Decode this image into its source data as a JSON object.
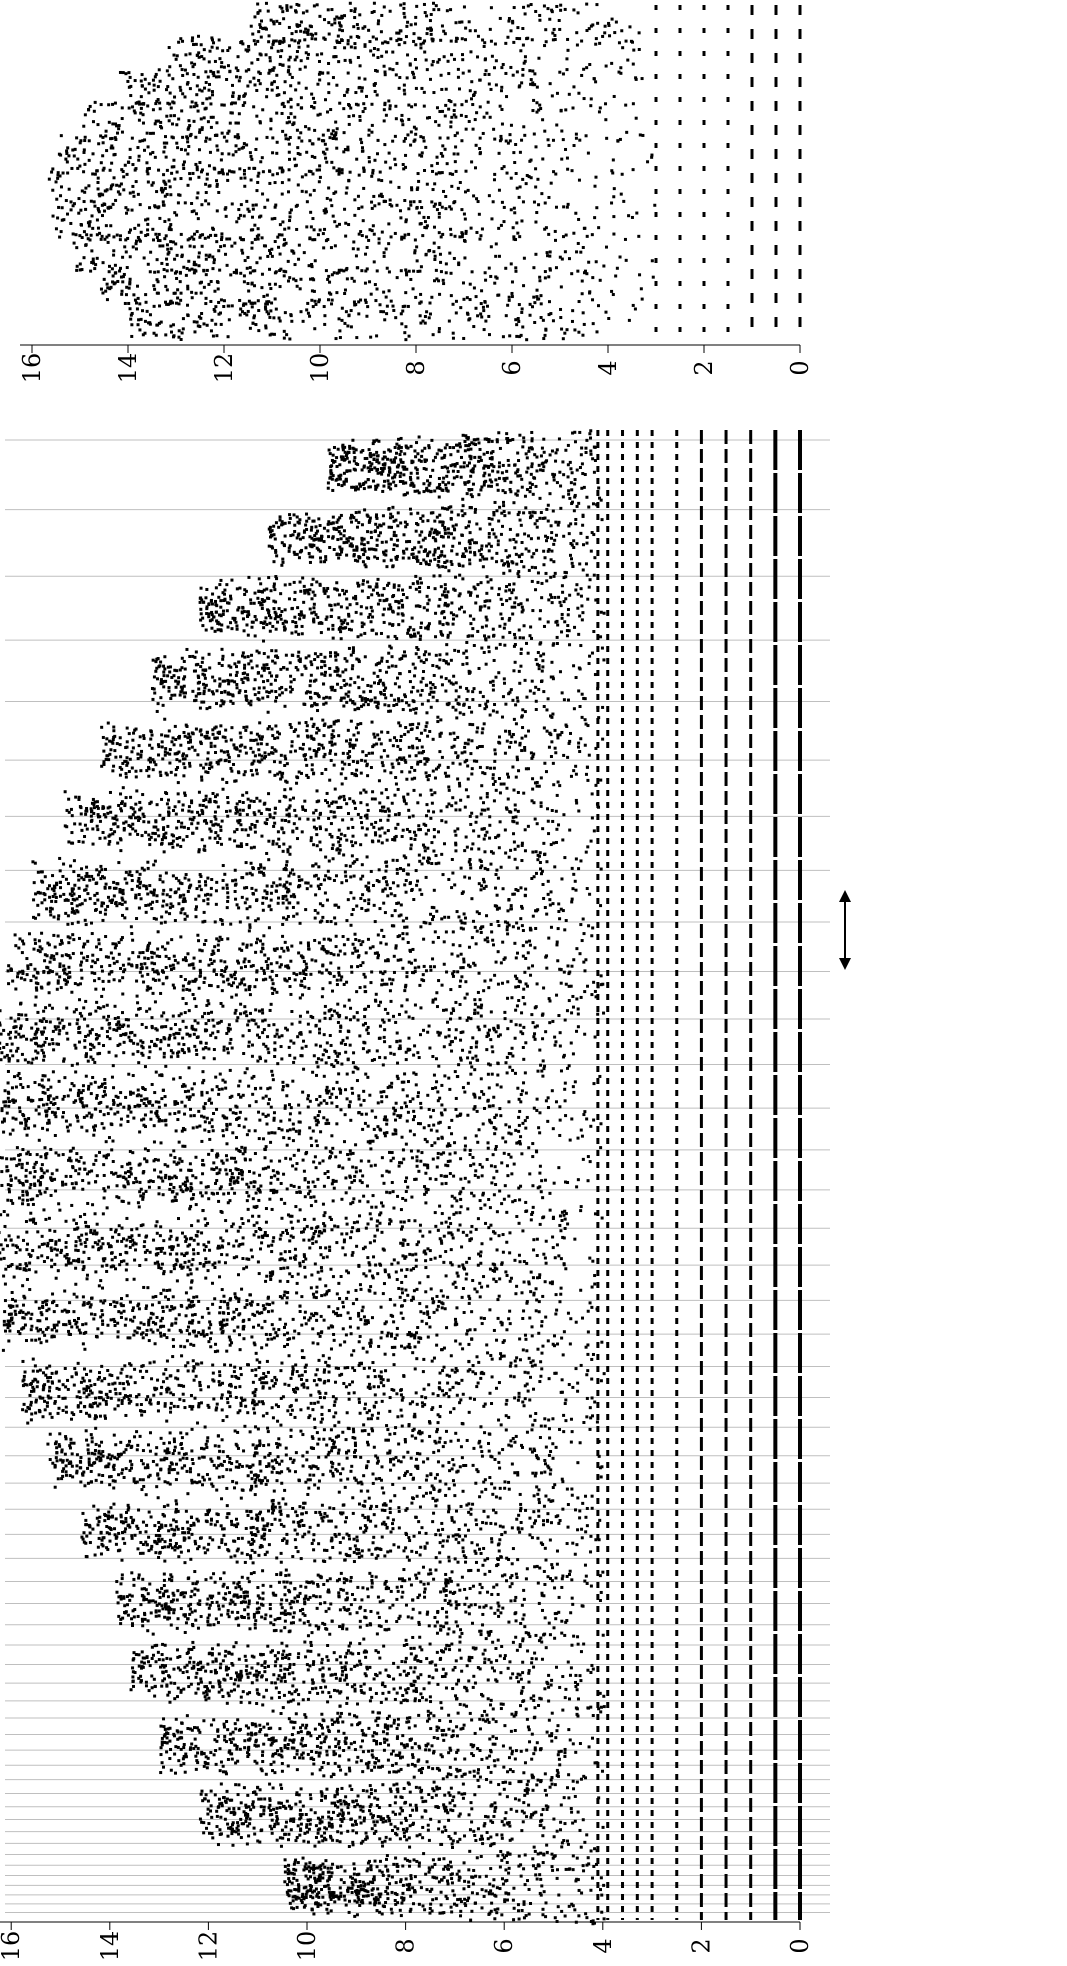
{
  "chart_data": [
    {
      "id": "main-panel",
      "type": "scatter",
      "title": "",
      "xlabel": "",
      "ylabel": "",
      "value_axis": {
        "ticks": [
          0,
          2,
          4,
          6,
          8,
          10,
          12,
          14,
          16
        ],
        "tick_labels": [
          "0",
          "2",
          "4",
          "6",
          "8",
          "10",
          "12",
          "14",
          "16"
        ],
        "range": [
          -0.5,
          17.0
        ],
        "grid": false
      },
      "bands": [
        {
          "position": 1.9,
          "peak": 10.5
        },
        {
          "position": 3.0,
          "peak": 12.2
        },
        {
          "position": 4.2,
          "peak": 13.0
        },
        {
          "position": 5.4,
          "peak": 13.6
        },
        {
          "position": 6.6,
          "peak": 13.9
        },
        {
          "position": 7.8,
          "peak": 14.6
        },
        {
          "position": 9.0,
          "peak": 15.3
        },
        {
          "position": 10.2,
          "peak": 15.8
        },
        {
          "position": 11.3,
          "peak": 16.2
        },
        {
          "position": 12.4,
          "peak": 16.4
        },
        {
          "position": 13.5,
          "peak": 16.6
        },
        {
          "position": 14.6,
          "peak": 16.6
        },
        {
          "position": 15.6,
          "peak": 16.4
        },
        {
          "position": 16.6,
          "peak": 16.1
        },
        {
          "position": 17.6,
          "peak": 15.6
        },
        {
          "position": 18.6,
          "peak": 15.0
        },
        {
          "position": 19.6,
          "peak": 14.2
        },
        {
          "position": 20.6,
          "peak": 13.2
        },
        {
          "position": 21.6,
          "peak": 12.2
        },
        {
          "position": 22.6,
          "peak": 10.8
        },
        {
          "position": 23.6,
          "peak": 9.6
        }
      ],
      "rows": [
        0,
        0.5,
        1.0,
        1.5,
        2.0,
        2.5,
        3.0,
        3.3,
        3.6,
        3.9,
        4.1
      ],
      "annotations": [
        "double-headed arrow"
      ]
    },
    {
      "id": "inset-panel",
      "type": "scatter",
      "title": "",
      "xlabel": "",
      "ylabel": "",
      "value_axis": {
        "ticks": [
          0,
          2,
          4,
          6,
          8,
          10,
          12,
          14,
          16
        ],
        "tick_labels": [
          "0",
          "2",
          "4",
          "6",
          "8",
          "10",
          "12",
          "14",
          "16"
        ],
        "range": [
          -0.5,
          17.0
        ],
        "grid": false
      },
      "bands": [
        {
          "position": 1.0,
          "peak": 14.0
        },
        {
          "position": 2.0,
          "peak": 14.6
        },
        {
          "position": 3.0,
          "peak": 15.2
        },
        {
          "position": 4.0,
          "peak": 15.6
        },
        {
          "position": 5.0,
          "peak": 15.7
        },
        {
          "position": 6.0,
          "peak": 15.5
        },
        {
          "position": 7.0,
          "peak": 15.0
        },
        {
          "position": 8.0,
          "peak": 14.2
        },
        {
          "position": 9.0,
          "peak": 13.2
        },
        {
          "position": 10.0,
          "peak": 11.5
        }
      ],
      "rows": [
        0,
        0.5,
        1.0,
        1.5,
        2.0,
        2.5,
        3.0
      ]
    }
  ]
}
